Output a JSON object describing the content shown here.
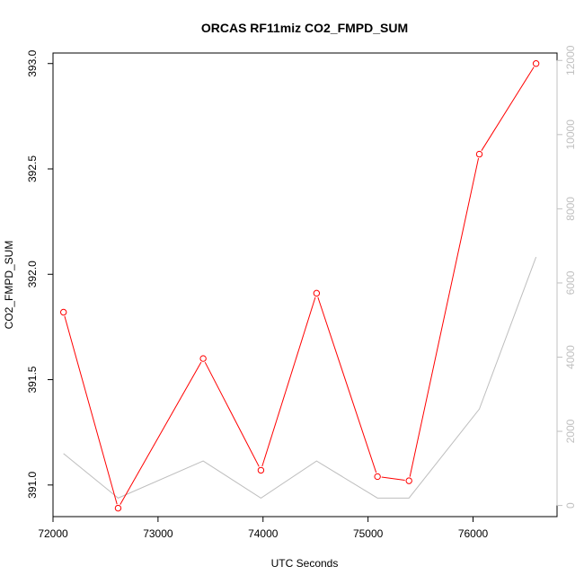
{
  "chart_data": {
    "type": "line",
    "title": "ORCAS RF11miz CO2_FMPD_SUM",
    "xlabel": "UTC Seconds",
    "ylabel": "CO2_FMPD_SUM",
    "xlim": [
      72000,
      76800
    ],
    "ylim": [
      390.85,
      393.05
    ],
    "y2lim": [
      -300,
      12200
    ],
    "x_ticks": [
      "72000",
      "73000",
      "74000",
      "75000",
      "76000"
    ],
    "y_ticks": [
      "391.0",
      "391.5",
      "392.0",
      "392.5",
      "393.0"
    ],
    "y2_ticks": [
      "0",
      "2000",
      "4000",
      "6000",
      "8000",
      "10000",
      "12000"
    ],
    "grid": false,
    "series": [
      {
        "axis": "left",
        "color": "#ff0000",
        "marker": "open-circle",
        "x": [
          72100,
          72620,
          73430,
          73980,
          74510,
          75090,
          75390,
          76060,
          76600
        ],
        "y": [
          391.82,
          390.89,
          391.6,
          391.07,
          391.91,
          391.04,
          391.02,
          392.57,
          393.0
        ]
      },
      {
        "axis": "right",
        "color": "#bebebe",
        "marker": "none",
        "x": [
          72100,
          72620,
          73430,
          73980,
          74510,
          75090,
          75390,
          76060,
          76600
        ],
        "y": [
          1400,
          200,
          1200,
          200,
          1200,
          200,
          200,
          2600,
          6700
        ]
      }
    ]
  }
}
